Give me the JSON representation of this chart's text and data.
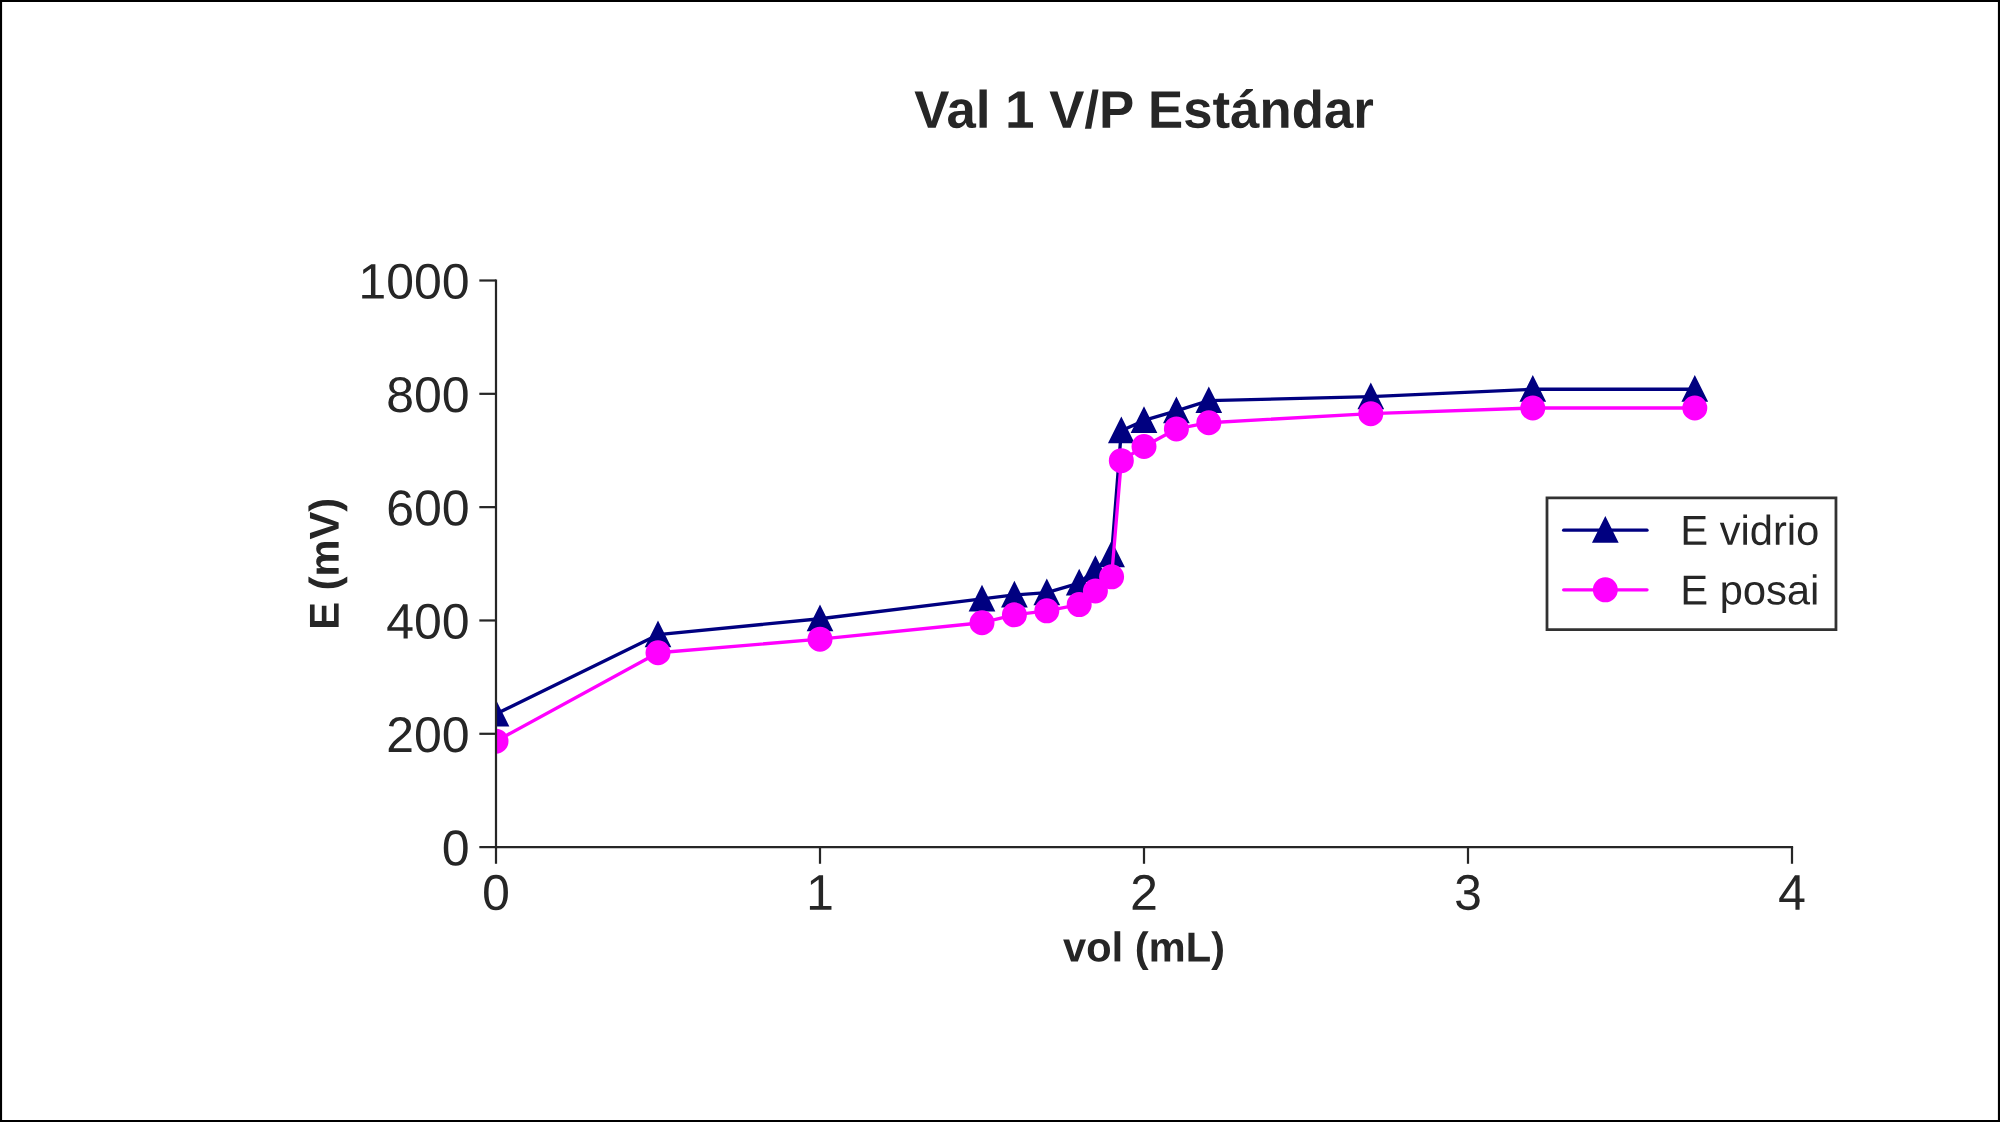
{
  "chart_data": {
    "type": "line",
    "title": "Val 1 V/P Estándar",
    "xlabel": "vol (mL)",
    "ylabel": "E (mV)",
    "x": [
      0,
      0.5,
      1,
      1.5,
      1.6,
      1.7,
      1.8,
      1.85,
      1.9,
      1.93,
      2.0,
      2.1,
      2.2,
      2.7,
      3.2,
      3.7
    ],
    "series": [
      {
        "name": "E vidrio",
        "color": "#000080",
        "marker": "triangle",
        "values": [
          235,
          375,
          403,
          438,
          445,
          449,
          466,
          490,
          516,
          735,
          753,
          770,
          788,
          795,
          808,
          808
        ]
      },
      {
        "name": "E posai",
        "color": "#ff00ff",
        "marker": "circle",
        "values": [
          187,
          343,
          367,
          396,
          410,
          417,
          428,
          452,
          477,
          682,
          707,
          738,
          749,
          765,
          775,
          775
        ]
      }
    ],
    "xlim": [
      0,
      4
    ],
    "xticks": [
      0,
      1,
      2,
      3,
      4
    ],
    "ylim": [
      0,
      1000
    ],
    "yticks": [
      0,
      200,
      400,
      600,
      800,
      1000
    ],
    "grid": false,
    "legend": "right",
    "line_style": "solid"
  }
}
